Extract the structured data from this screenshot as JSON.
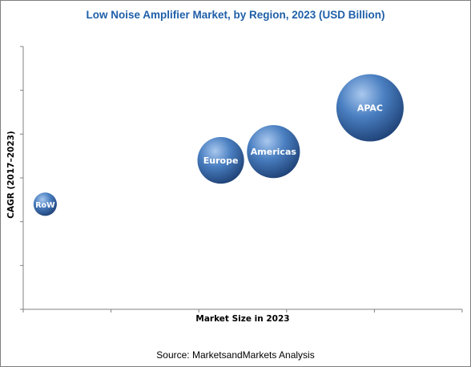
{
  "chart_data": {
    "type": "scatter",
    "title": "Low Noise Amplifier Market, by Region, 2023 (USD Billion)",
    "xlabel": "Market Size in 2023",
    "ylabel": "CAGR (2017–2023)",
    "grid": false,
    "series": [
      {
        "label": "RoW",
        "x": 0.5,
        "y": 2.4,
        "size": 0.12
      },
      {
        "label": "Europe",
        "x": 4.5,
        "y": 3.4,
        "size": 0.48
      },
      {
        "label": "Americas",
        "x": 5.7,
        "y": 3.6,
        "size": 0.62
      },
      {
        "label": "APAC",
        "x": 7.9,
        "y": 4.6,
        "size": 1.0
      }
    ],
    "xlim": [
      0,
      10
    ],
    "ylim": [
      0,
      6
    ],
    "colors": {
      "bubble_light": "#a9c8ee",
      "bubble_mid": "#4a7fc1",
      "bubble_dark": "#1d3f73",
      "title": "#1f5fa8",
      "axis": "#808080"
    }
  },
  "source": "Source: MarketsandMarkets Analysis"
}
